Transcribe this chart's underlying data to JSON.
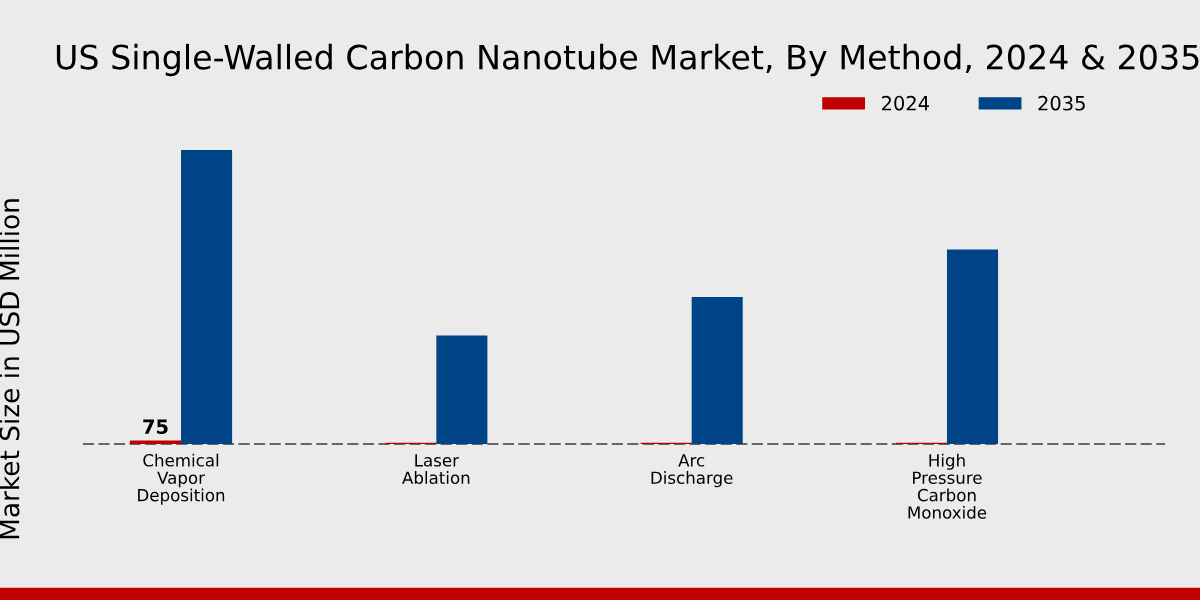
{
  "chart_data": {
    "type": "bar",
    "title": "US Single-Walled Carbon Nanotube Market, By Method, 2024 & 2035",
    "ylabel": "Market Size in USD Million",
    "categories": [
      "Chemical\nVapor\nDeposition",
      "Laser\nAblation",
      "Arc\nDischarge",
      "High\nPressure\nCarbon\nMonoxide"
    ],
    "ylim": [
      0,
      6630
    ],
    "series": [
      {
        "name": "2024",
        "color": "#c00000",
        "values": [
          75,
          30,
          30,
          30
        ],
        "value_labels": [
          "75",
          null,
          null,
          null
        ]
      },
      {
        "name": "2035",
        "color": "#004488",
        "values": [
          6500,
          2400,
          3250,
          4300
        ]
      }
    ],
    "legend": "top right",
    "grid": false
  }
}
